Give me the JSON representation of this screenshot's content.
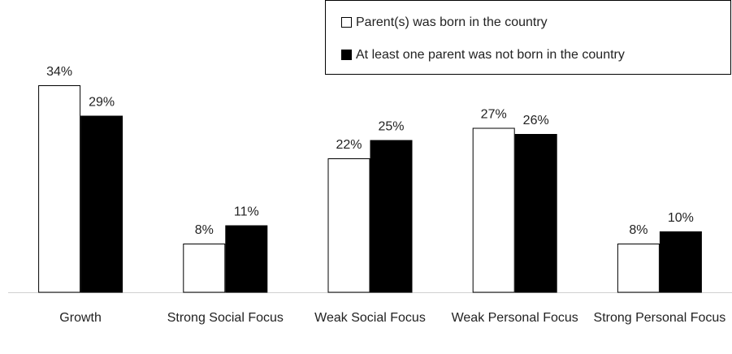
{
  "chart_data": {
    "type": "bar",
    "categories": [
      "Growth",
      "Strong Social Focus",
      "Weak Social Focus",
      "Weak Personal Focus",
      "Strong Personal Focus"
    ],
    "series": [
      {
        "name": "Parent(s) was born in the country",
        "color": "#ffffff",
        "values": [
          34,
          8,
          22,
          27,
          8
        ],
        "value_labels": [
          "34%",
          "8%",
          "22%",
          "27%",
          "8%"
        ]
      },
      {
        "name": "At least one parent was not born in the country",
        "color": "#000000",
        "values": [
          29,
          11,
          25,
          26,
          10
        ],
        "value_labels": [
          "29%",
          "11%",
          "25%",
          "26%",
          "10%"
        ]
      }
    ],
    "legend": "top-right"
  }
}
